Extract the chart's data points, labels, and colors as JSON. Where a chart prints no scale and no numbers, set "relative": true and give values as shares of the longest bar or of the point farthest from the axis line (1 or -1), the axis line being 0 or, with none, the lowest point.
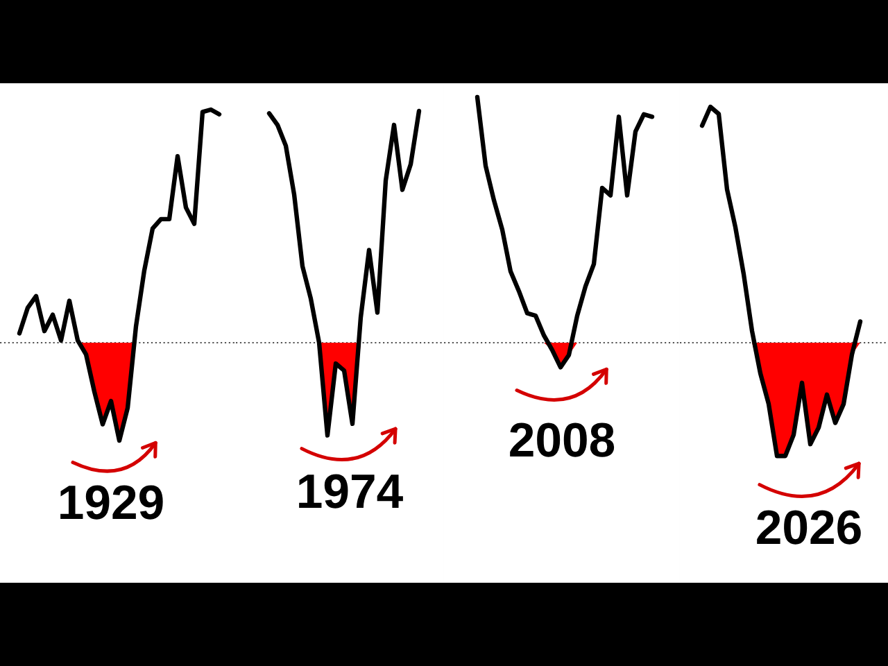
{
  "chart_data": [
    {
      "type": "line",
      "relative": true,
      "legend": false,
      "marker": "none",
      "line_style": "solid",
      "categories": [
        null,
        null,
        null,
        null,
        null,
        null,
        null,
        null,
        null,
        null,
        null,
        null,
        null,
        null,
        null,
        null,
        null,
        null,
        null,
        null,
        null,
        null,
        null,
        null,
        null
      ],
      "series": [
        {
          "color": "#000000",
          "values": [
            0.04,
            0.15,
            0.2,
            0.05,
            0.12,
            0.01,
            0.18,
            0.01,
            -0.05,
            -0.21,
            -0.35,
            -0.25,
            -0.42,
            -0.28,
            0.07,
            0.31,
            0.49,
            0.53,
            0.53,
            0.8,
            0.58,
            0.51,
            0.99,
            1.0,
            0.98
          ]
        },
        {
          "type": "area",
          "color": "#ff0000",
          "values": [
            null,
            null,
            null,
            null,
            null,
            null,
            null,
            0,
            -0.05,
            -0.21,
            -0.35,
            -0.25,
            -0.42,
            -0.28,
            0,
            null,
            null,
            null,
            null,
            null,
            null,
            null,
            null,
            null,
            null
          ]
        }
      ],
      "ref_lines": [
        {
          "axis": "y",
          "value": 0,
          "color": "#555555",
          "line_style": "dotted"
        }
      ],
      "annotations": [
        "1929"
      ]
    },
    {
      "type": "line",
      "relative": true,
      "legend": false,
      "marker": "none",
      "line_style": "solid",
      "categories": [
        null,
        null,
        null,
        null,
        null,
        null,
        null,
        null,
        null,
        null,
        null,
        null,
        null,
        null,
        null,
        null,
        null,
        null,
        null
      ],
      "series": [
        {
          "color": "#000000",
          "values": [
            0.99,
            0.94,
            0.85,
            0.64,
            0.33,
            0.19,
            0,
            -0.4,
            -0.09,
            -0.12,
            -0.35,
            0.11,
            0.4,
            0.13,
            0.7,
            0.94,
            0.66,
            0.77,
            1.0
          ]
        },
        {
          "type": "area",
          "color": "#ff0000",
          "values": [
            null,
            null,
            null,
            null,
            null,
            null,
            0,
            -0.4,
            -0.09,
            -0.12,
            -0.35,
            0,
            null,
            null,
            null,
            null,
            null,
            null,
            null
          ]
        }
      ],
      "ref_lines": [
        {
          "axis": "y",
          "value": 0,
          "color": "#555555",
          "line_style": "dotted"
        }
      ],
      "annotations": [
        "1974"
      ]
    },
    {
      "type": "line",
      "relative": true,
      "legend": false,
      "marker": "none",
      "line_style": "solid",
      "categories": [
        null,
        null,
        null,
        null,
        null,
        null,
        null,
        null,
        null,
        null,
        null,
        null,
        null,
        null,
        null,
        null,
        null,
        null,
        null,
        null,
        null,
        null
      ],
      "series": [
        {
          "color": "#000000",
          "values": [
            1.0,
            0.72,
            0.58,
            0.46,
            0.29,
            0.21,
            0.12,
            0.11,
            0.03,
            -0.03,
            -0.1,
            -0.05,
            0.11,
            0.23,
            0.32,
            0.63,
            0.6,
            0.92,
            0.6,
            0.86,
            0.93,
            0.92
          ]
        },
        {
          "type": "area",
          "color": "#ff0000",
          "values": [
            null,
            null,
            null,
            null,
            null,
            null,
            null,
            null,
            0,
            -0.03,
            -0.1,
            -0.05,
            0,
            null,
            null,
            null,
            null,
            null,
            null,
            null,
            null,
            null
          ]
        }
      ],
      "ref_lines": [
        {
          "axis": "y",
          "value": 0,
          "color": "#555555",
          "line_style": "dotted"
        }
      ],
      "annotations": [
        "2008"
      ]
    },
    {
      "type": "line",
      "relative": true,
      "legend": false,
      "marker": "none",
      "line_style": "solid",
      "categories": [
        null,
        null,
        null,
        null,
        null,
        null,
        null,
        null,
        null,
        null,
        null,
        null,
        null,
        null,
        null,
        null,
        null,
        null,
        null,
        null
      ],
      "series": [
        {
          "color": "#000000",
          "values": [
            0.92,
            1.0,
            0.97,
            0.65,
            0.49,
            0.29,
            0.05,
            -0.13,
            -0.26,
            -0.48,
            -0.48,
            -0.39,
            -0.17,
            -0.43,
            -0.36,
            -0.22,
            -0.34,
            -0.26,
            -0.05,
            0.09
          ]
        },
        {
          "type": "area",
          "color": "#ff0000",
          "values": [
            null,
            null,
            null,
            null,
            null,
            null,
            0,
            -0.13,
            -0.26,
            -0.48,
            -0.48,
            -0.39,
            -0.17,
            -0.43,
            -0.36,
            -0.22,
            -0.34,
            -0.26,
            -0.05,
            0
          ]
        }
      ],
      "ref_lines": [
        {
          "axis": "y",
          "value": 0,
          "color": "#555555",
          "line_style": "dotted"
        }
      ],
      "annotations": [
        "2026"
      ]
    }
  ]
}
